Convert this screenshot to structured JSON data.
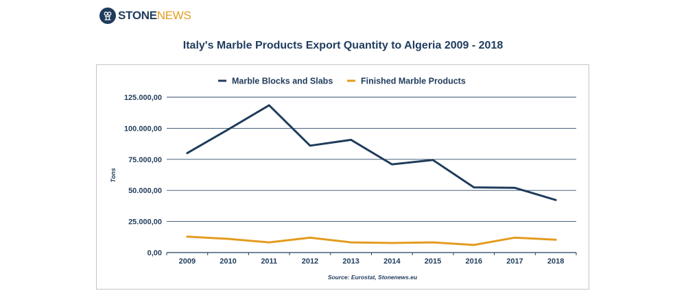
{
  "brand": {
    "name_part1": "STONE",
    "name_part2": "NEWS",
    "colors": {
      "navy": "#1f3b5c",
      "orange": "#e39b1e"
    }
  },
  "chart_data": {
    "type": "line",
    "title": "Italy's Marble Products Export Quantity to Algeria 2009 - 2018",
    "ylabel": "Tons",
    "xlabel": "",
    "source": "Source: Eurostat, Stonenews.eu",
    "x": [
      "2009",
      "2010",
      "2011",
      "2012",
      "2013",
      "2014",
      "2015",
      "2016",
      "2017",
      "2018"
    ],
    "ylim": [
      0,
      125000
    ],
    "yticks": [
      0,
      25000,
      50000,
      75000,
      100000,
      125000
    ],
    "ytick_labels": [
      "0,00",
      "25.000,00",
      "50.000,00",
      "75.000,00",
      "100.000,00",
      "125.000,00"
    ],
    "grid": "horizontal",
    "legend_position": "top-center",
    "series": [
      {
        "name": "Marble Blocks and Slabs",
        "color": "#1f3b5c",
        "values": [
          80000,
          99000,
          118500,
          86000,
          90700,
          71000,
          74500,
          52500,
          52100,
          42300
        ]
      },
      {
        "name": "Finished Marble Products",
        "color": "#e39b1e",
        "values": [
          12800,
          11000,
          8200,
          12000,
          8200,
          7700,
          8200,
          6100,
          12000,
          10300
        ]
      }
    ]
  }
}
